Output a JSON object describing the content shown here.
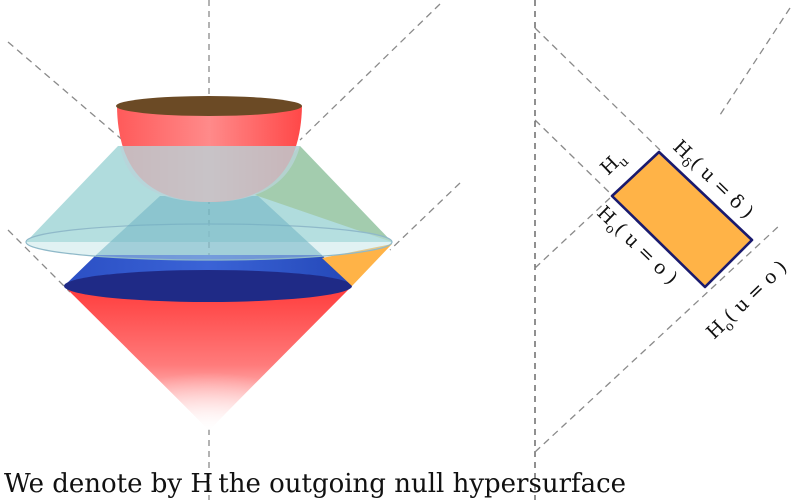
{
  "diagram": {
    "labels": {
      "h_u": "H",
      "h_u_sub": "u",
      "h_delta": "H",
      "h_delta_sub": "δ",
      "h_delta_cond": "( u = δ )",
      "h_o_left": "H",
      "h_o_left_sub": "o",
      "h_o_left_cond": "( u = o )",
      "h_o_right": "H",
      "h_o_right_sub": "o",
      "h_o_right_cond": "( u = o )"
    },
    "colors": {
      "cone_red": "#ff4a4a",
      "cone_blue": "#2f55c8",
      "cone_dark_blue": "#1f2f8f",
      "cap_top": "#6b4a25",
      "cyan_cone": "#7fc6c8",
      "green_cone": "#8fbf8c",
      "orange": "#ffb347",
      "rect_outline": "#1a1a6e",
      "dashed": "#888888"
    }
  },
  "caption": {
    "text": "We denote by  H the outgoing null hypersurface"
  }
}
